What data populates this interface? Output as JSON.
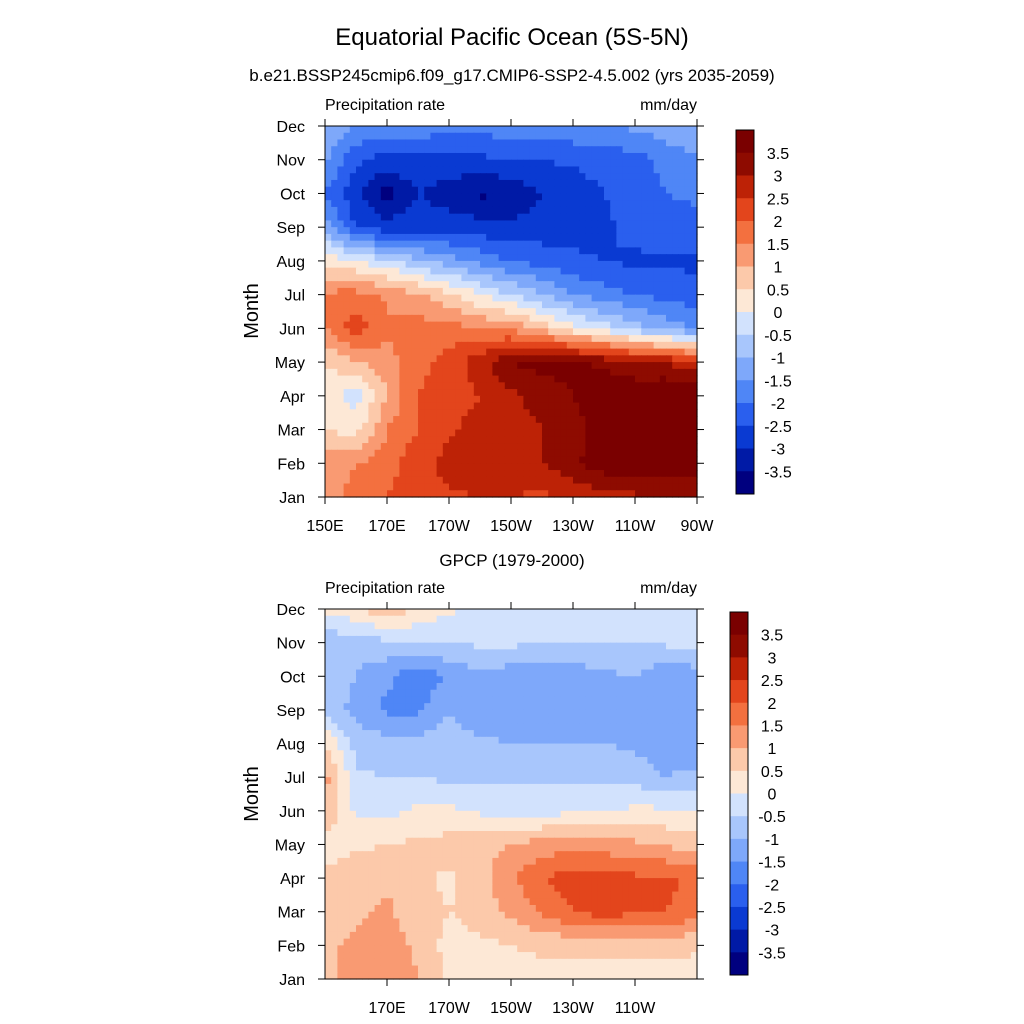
{
  "figure": {
    "title": "Equatorial Pacific Ocean (5S-5N)"
  },
  "chart_data": [
    {
      "type": "heatmap",
      "id": "model",
      "subtitle": "b.e21.BSSP245cmip6.f09_g17.CMIP6-SSP2-4.5.002 (yrs 2035-2059)",
      "left_label": "Precipitation rate",
      "right_label": "mm/day",
      "ylabel": "Month",
      "xlabel": "",
      "xlim": [
        150,
        270
      ],
      "xticks": [
        150,
        170,
        190,
        210,
        230,
        250,
        270
      ],
      "xtick_labels": [
        "150E",
        "170E",
        "170W",
        "150W",
        "130W",
        "110W",
        "90W"
      ],
      "yticks": [
        "Jan",
        "Feb",
        "Mar",
        "Apr",
        "May",
        "Jun",
        "Jul",
        "Aug",
        "Sep",
        "Oct",
        "Nov",
        "Dec"
      ],
      "levels": [
        -3.5,
        -3,
        -2.5,
        -2,
        -1.5,
        -1,
        -0.5,
        0,
        0.5,
        1,
        1.5,
        2,
        2.5,
        3,
        3.5
      ],
      "colors": [
        "#00007f",
        "#001aa6",
        "#0a3ad2",
        "#2a5fee",
        "#4f86f6",
        "#7ea8fa",
        "#a8c6fc",
        "#d2e2fd",
        "#fde8d6",
        "#fcc9aa",
        "#f99a72",
        "#f3703f",
        "#e3451c",
        "#bd2206",
        "#8e0b00",
        "#7a0000"
      ],
      "lon": [
        150,
        160,
        170,
        180,
        190,
        200,
        210,
        220,
        230,
        240,
        250,
        260,
        270
      ],
      "months": [
        "Jan",
        "Feb",
        "Mar",
        "Apr",
        "May",
        "Jun",
        "Jul",
        "Aug",
        "Sep",
        "Oct",
        "Nov",
        "Dec"
      ],
      "values": [
        [
          1.3,
          1.7,
          2.0,
          2.3,
          2.4,
          2.5,
          2.5,
          2.4,
          2.6,
          2.8,
          2.9,
          3.0,
          3.0
        ],
        [
          1.2,
          1.5,
          1.8,
          2.3,
          2.7,
          2.8,
          2.8,
          3.0,
          3.4,
          3.8,
          3.9,
          3.9,
          3.8
        ],
        [
          0.5,
          0.3,
          1.5,
          2.0,
          2.4,
          2.7,
          2.8,
          3.0,
          3.3,
          3.8,
          4.0,
          4.0,
          4.0
        ],
        [
          0.3,
          -0.3,
          1.0,
          2.0,
          2.3,
          2.5,
          2.9,
          3.2,
          3.5,
          3.8,
          3.9,
          4.0,
          4.0
        ],
        [
          0.5,
          1.0,
          1.3,
          1.8,
          2.2,
          2.8,
          3.5,
          3.7,
          3.6,
          3.4,
          3.1,
          3.0,
          2.6
        ],
        [
          1.5,
          2.3,
          1.6,
          1.7,
          1.7,
          1.5,
          1.4,
          0.8,
          0.2,
          -0.3,
          -0.8,
          -1.2,
          -1.6
        ],
        [
          1.6,
          1.7,
          1.4,
          1.1,
          0.6,
          0.0,
          -0.5,
          -1.0,
          -1.5,
          -1.8,
          -2.0,
          -2.2,
          -2.3
        ],
        [
          0.4,
          0.0,
          -0.4,
          -0.9,
          -1.3,
          -1.7,
          -2.0,
          -2.2,
          -2.4,
          -2.5,
          -2.6,
          -2.6,
          -2.6
        ],
        [
          -1.2,
          -2.6,
          -2.8,
          -2.7,
          -2.7,
          -2.8,
          -2.9,
          -2.8,
          -2.7,
          -2.6,
          -2.3,
          -2.1,
          -2.2
        ],
        [
          -2.0,
          -2.9,
          -3.7,
          -3.0,
          -3.3,
          -3.6,
          -3.4,
          -3.0,
          -2.8,
          -2.5,
          -2.3,
          -2.0,
          -1.9
        ],
        [
          -1.4,
          -2.4,
          -2.7,
          -2.6,
          -2.6,
          -2.6,
          -2.5,
          -2.5,
          -2.4,
          -2.3,
          -2.2,
          -1.8,
          -1.6
        ],
        [
          -1.0,
          -1.5,
          -1.6,
          -1.7,
          -1.8,
          -1.8,
          -1.7,
          -1.7,
          -1.6,
          -1.5,
          -1.4,
          -1.2,
          -1.0
        ]
      ],
      "colorbar_labels": [
        "3.5",
        "3",
        "2.5",
        "2",
        "1.5",
        "1",
        "0.5",
        "0",
        "-0.5",
        "-1",
        "-1.5",
        "-2",
        "-2.5",
        "-3",
        "-3.5"
      ]
    },
    {
      "type": "heatmap",
      "id": "gpcp",
      "subtitle": "GPCP (1979-2000)",
      "left_label": "Precipitation rate",
      "right_label": "mm/day",
      "ylabel": "Month",
      "xlabel": "",
      "xlim": [
        150,
        270
      ],
      "xticks": [
        170,
        190,
        210,
        230,
        250
      ],
      "xtick_labels": [
        "170E",
        "170W",
        "150W",
        "130W",
        "110W"
      ],
      "yticks": [
        "Jan",
        "Feb",
        "Mar",
        "Apr",
        "May",
        "Jun",
        "Jul",
        "Aug",
        "Sep",
        "Oct",
        "Nov",
        "Dec"
      ],
      "levels": [
        -3.5,
        -3,
        -2.5,
        -2,
        -1.5,
        -1,
        -0.5,
        0,
        0.5,
        1,
        1.5,
        2,
        2.5,
        3,
        3.5
      ],
      "colors": [
        "#00007f",
        "#001aa6",
        "#0a3ad2",
        "#2a5fee",
        "#4f86f6",
        "#7ea8fa",
        "#a8c6fc",
        "#d2e2fd",
        "#fde8d6",
        "#fcc9aa",
        "#f99a72",
        "#f3703f",
        "#e3451c",
        "#bd2206",
        "#8e0b00",
        "#7a0000"
      ],
      "lon": [
        150,
        160,
        170,
        180,
        190,
        200,
        210,
        220,
        230,
        240,
        250,
        260,
        270
      ],
      "months": [
        "Jan",
        "Feb",
        "Mar",
        "Apr",
        "May",
        "Jun",
        "Jul",
        "Aug",
        "Sep",
        "Oct",
        "Nov",
        "Dec"
      ],
      "values": [
        [
          0.8,
          1.2,
          1.3,
          1.0,
          0.4,
          0.3,
          0.3,
          0.3,
          0.2,
          0.2,
          0.2,
          0.2,
          0.2
        ],
        [
          0.9,
          1.1,
          1.2,
          0.9,
          0.3,
          0.4,
          0.5,
          0.6,
          0.7,
          0.8,
          0.8,
          0.7,
          0.6
        ],
        [
          0.7,
          0.9,
          1.1,
          0.7,
          0.5,
          0.7,
          1.1,
          1.6,
          2.0,
          2.2,
          2.1,
          2.0,
          1.8
        ],
        [
          0.6,
          0.8,
          0.9,
          0.6,
          0.4,
          0.8,
          1.4,
          2.0,
          2.2,
          2.3,
          2.1,
          2.1,
          1.9
        ],
        [
          0.3,
          0.4,
          0.5,
          0.6,
          0.7,
          0.9,
          1.0,
          1.2,
          1.3,
          1.2,
          1.1,
          0.9,
          0.8
        ],
        [
          1.0,
          -0.1,
          -0.2,
          0.1,
          0.1,
          -0.1,
          -0.2,
          -0.2,
          -0.1,
          0.0,
          0.1,
          0.1,
          0.1
        ],
        [
          1.2,
          -0.4,
          -0.5,
          -0.5,
          -0.6,
          -0.6,
          -0.6,
          -0.6,
          -0.6,
          -0.6,
          -0.7,
          -1.0,
          -0.9
        ],
        [
          0.5,
          -0.7,
          -0.8,
          -0.8,
          -0.8,
          -0.9,
          -1.0,
          -1.0,
          -1.0,
          -1.0,
          -1.1,
          -1.3,
          -1.2
        ],
        [
          -0.6,
          -1.2,
          -1.6,
          -1.6,
          -1.0,
          -1.3,
          -1.3,
          -1.4,
          -1.3,
          -1.1,
          -1.0,
          -1.4,
          -1.2
        ],
        [
          -0.8,
          -1.0,
          -1.4,
          -1.9,
          -1.4,
          -1.1,
          -1.3,
          -1.4,
          -1.3,
          -1.1,
          -1.0,
          -1.4,
          -1.2
        ],
        [
          -0.8,
          -0.8,
          -0.6,
          -0.6,
          -0.5,
          -0.4,
          -0.4,
          -0.5,
          -0.5,
          -0.5,
          -0.5,
          -0.4,
          -0.4
        ],
        [
          0.1,
          0.4,
          0.9,
          0.5,
          0.1,
          -0.2,
          -0.3,
          -0.3,
          -0.4,
          -0.4,
          -0.4,
          -0.4,
          -0.4
        ]
      ],
      "colorbar_labels": [
        "3.5",
        "3",
        "2.5",
        "2",
        "1.5",
        "1",
        "0.5",
        "0",
        "-0.5",
        "-1",
        "-1.5",
        "-2",
        "-2.5",
        "-3",
        "-3.5"
      ]
    }
  ]
}
